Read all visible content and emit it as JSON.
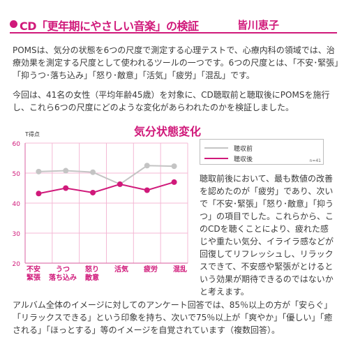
{
  "header": {
    "title": "CD「更年期にやさしい音楽」の検証",
    "author": "皆川恵子"
  },
  "intro_paragraph": "POMSは、気分の状態を6つの尺度で測定する心理テストで、心療内科の領域では、治療効果を測定する尺度として使われるツールの一つです。6つの尺度とは、「不安･緊張」「抑うつ･落ち込み」「怒り･敵意」「活気」「疲労」「混乱」です。",
  "method_paragraph": "今回は、41名の女性（平均年齢45歳）を対象に、CD聴取前と聴取後にPOMSを施行し、これら6つの尺度にどのような変化があらわれたのかを検証しました。",
  "chart_data": {
    "type": "line",
    "title": "気分状態変化",
    "ylabel": "T得点",
    "ylim": [
      20,
      60
    ],
    "yticks": [
      "20",
      "30",
      "40",
      "50",
      "60"
    ],
    "grid": true,
    "legend_position": "top-right",
    "categories": [
      "不安\n緊張",
      "うつ\n落ち込み",
      "怒り\n敵意",
      "活気",
      "疲労",
      "混乱"
    ],
    "series": [
      {
        "name": "聴収前",
        "color": "#c4c4c4",
        "values": [
          50.5,
          50.8,
          50.3,
          46.3,
          52.5,
          52.3
        ]
      },
      {
        "name": "聴収後",
        "color": "#d0197a",
        "values": [
          43.2,
          45.0,
          43.5,
          46.3,
          44.3,
          47.0
        ]
      }
    ],
    "annotation": "n=41"
  },
  "side_paragraph": "聴取前後において、最も数値の改善を認めたのが「疲労」であり、次いで「不安･緊張」「怒り･敵意」「抑うつ」の項目でした。これらから、このCDを聴くことにより、疲れた感じや重たい気分、イライラ感などが回復してリフレッシュし、リラックスできて、不安感や緊張がとけるという効果が期待できるのではないかと考えます。",
  "result_paragraph": "アルバム全体のイメージに対してのアンケート回答では、85％以上の方が「安らぐ」「リラックスできる」という印象を持ち、次いで75％以上が「爽やか」「優しい」「癒される」「ほっとする」等のイメージを自覚されています（複数回答）。",
  "colors": {
    "accent": "#d0197a",
    "before": "#c4c4c4",
    "grid": "#f4b8d5",
    "axis": "#e07bb0"
  }
}
